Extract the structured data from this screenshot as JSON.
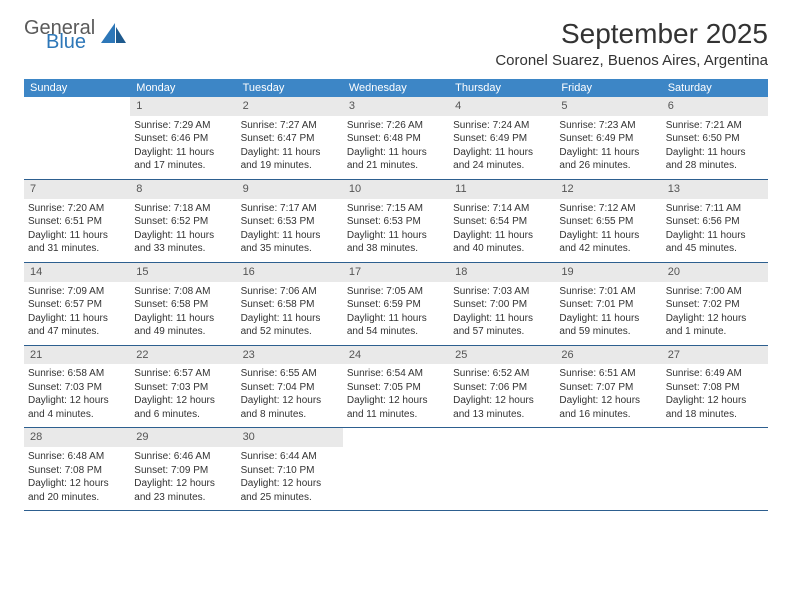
{
  "logo": {
    "text_dark": "General",
    "text_blue": "Blue"
  },
  "title": "September 2025",
  "location": "Coronel Suarez, Buenos Aires, Argentina",
  "header_bg": "#3d86c6",
  "daynum_bg": "#e9e9e9",
  "week_border": "#2d5f8f",
  "dow": [
    "Sunday",
    "Monday",
    "Tuesday",
    "Wednesday",
    "Thursday",
    "Friday",
    "Saturday"
  ],
  "weeks": [
    [
      {
        "n": "",
        "sr": "",
        "ss": "",
        "dl1": "",
        "dl2": ""
      },
      {
        "n": "1",
        "sr": "Sunrise: 7:29 AM",
        "ss": "Sunset: 6:46 PM",
        "dl1": "Daylight: 11 hours",
        "dl2": "and 17 minutes."
      },
      {
        "n": "2",
        "sr": "Sunrise: 7:27 AM",
        "ss": "Sunset: 6:47 PM",
        "dl1": "Daylight: 11 hours",
        "dl2": "and 19 minutes."
      },
      {
        "n": "3",
        "sr": "Sunrise: 7:26 AM",
        "ss": "Sunset: 6:48 PM",
        "dl1": "Daylight: 11 hours",
        "dl2": "and 21 minutes."
      },
      {
        "n": "4",
        "sr": "Sunrise: 7:24 AM",
        "ss": "Sunset: 6:49 PM",
        "dl1": "Daylight: 11 hours",
        "dl2": "and 24 minutes."
      },
      {
        "n": "5",
        "sr": "Sunrise: 7:23 AM",
        "ss": "Sunset: 6:49 PM",
        "dl1": "Daylight: 11 hours",
        "dl2": "and 26 minutes."
      },
      {
        "n": "6",
        "sr": "Sunrise: 7:21 AM",
        "ss": "Sunset: 6:50 PM",
        "dl1": "Daylight: 11 hours",
        "dl2": "and 28 minutes."
      }
    ],
    [
      {
        "n": "7",
        "sr": "Sunrise: 7:20 AM",
        "ss": "Sunset: 6:51 PM",
        "dl1": "Daylight: 11 hours",
        "dl2": "and 31 minutes."
      },
      {
        "n": "8",
        "sr": "Sunrise: 7:18 AM",
        "ss": "Sunset: 6:52 PM",
        "dl1": "Daylight: 11 hours",
        "dl2": "and 33 minutes."
      },
      {
        "n": "9",
        "sr": "Sunrise: 7:17 AM",
        "ss": "Sunset: 6:53 PM",
        "dl1": "Daylight: 11 hours",
        "dl2": "and 35 minutes."
      },
      {
        "n": "10",
        "sr": "Sunrise: 7:15 AM",
        "ss": "Sunset: 6:53 PM",
        "dl1": "Daylight: 11 hours",
        "dl2": "and 38 minutes."
      },
      {
        "n": "11",
        "sr": "Sunrise: 7:14 AM",
        "ss": "Sunset: 6:54 PM",
        "dl1": "Daylight: 11 hours",
        "dl2": "and 40 minutes."
      },
      {
        "n": "12",
        "sr": "Sunrise: 7:12 AM",
        "ss": "Sunset: 6:55 PM",
        "dl1": "Daylight: 11 hours",
        "dl2": "and 42 minutes."
      },
      {
        "n": "13",
        "sr": "Sunrise: 7:11 AM",
        "ss": "Sunset: 6:56 PM",
        "dl1": "Daylight: 11 hours",
        "dl2": "and 45 minutes."
      }
    ],
    [
      {
        "n": "14",
        "sr": "Sunrise: 7:09 AM",
        "ss": "Sunset: 6:57 PM",
        "dl1": "Daylight: 11 hours",
        "dl2": "and 47 minutes."
      },
      {
        "n": "15",
        "sr": "Sunrise: 7:08 AM",
        "ss": "Sunset: 6:58 PM",
        "dl1": "Daylight: 11 hours",
        "dl2": "and 49 minutes."
      },
      {
        "n": "16",
        "sr": "Sunrise: 7:06 AM",
        "ss": "Sunset: 6:58 PM",
        "dl1": "Daylight: 11 hours",
        "dl2": "and 52 minutes."
      },
      {
        "n": "17",
        "sr": "Sunrise: 7:05 AM",
        "ss": "Sunset: 6:59 PM",
        "dl1": "Daylight: 11 hours",
        "dl2": "and 54 minutes."
      },
      {
        "n": "18",
        "sr": "Sunrise: 7:03 AM",
        "ss": "Sunset: 7:00 PM",
        "dl1": "Daylight: 11 hours",
        "dl2": "and 57 minutes."
      },
      {
        "n": "19",
        "sr": "Sunrise: 7:01 AM",
        "ss": "Sunset: 7:01 PM",
        "dl1": "Daylight: 11 hours",
        "dl2": "and 59 minutes."
      },
      {
        "n": "20",
        "sr": "Sunrise: 7:00 AM",
        "ss": "Sunset: 7:02 PM",
        "dl1": "Daylight: 12 hours",
        "dl2": "and 1 minute."
      }
    ],
    [
      {
        "n": "21",
        "sr": "Sunrise: 6:58 AM",
        "ss": "Sunset: 7:03 PM",
        "dl1": "Daylight: 12 hours",
        "dl2": "and 4 minutes."
      },
      {
        "n": "22",
        "sr": "Sunrise: 6:57 AM",
        "ss": "Sunset: 7:03 PM",
        "dl1": "Daylight: 12 hours",
        "dl2": "and 6 minutes."
      },
      {
        "n": "23",
        "sr": "Sunrise: 6:55 AM",
        "ss": "Sunset: 7:04 PM",
        "dl1": "Daylight: 12 hours",
        "dl2": "and 8 minutes."
      },
      {
        "n": "24",
        "sr": "Sunrise: 6:54 AM",
        "ss": "Sunset: 7:05 PM",
        "dl1": "Daylight: 12 hours",
        "dl2": "and 11 minutes."
      },
      {
        "n": "25",
        "sr": "Sunrise: 6:52 AM",
        "ss": "Sunset: 7:06 PM",
        "dl1": "Daylight: 12 hours",
        "dl2": "and 13 minutes."
      },
      {
        "n": "26",
        "sr": "Sunrise: 6:51 AM",
        "ss": "Sunset: 7:07 PM",
        "dl1": "Daylight: 12 hours",
        "dl2": "and 16 minutes."
      },
      {
        "n": "27",
        "sr": "Sunrise: 6:49 AM",
        "ss": "Sunset: 7:08 PM",
        "dl1": "Daylight: 12 hours",
        "dl2": "and 18 minutes."
      }
    ],
    [
      {
        "n": "28",
        "sr": "Sunrise: 6:48 AM",
        "ss": "Sunset: 7:08 PM",
        "dl1": "Daylight: 12 hours",
        "dl2": "and 20 minutes."
      },
      {
        "n": "29",
        "sr": "Sunrise: 6:46 AM",
        "ss": "Sunset: 7:09 PM",
        "dl1": "Daylight: 12 hours",
        "dl2": "and 23 minutes."
      },
      {
        "n": "30",
        "sr": "Sunrise: 6:44 AM",
        "ss": "Sunset: 7:10 PM",
        "dl1": "Daylight: 12 hours",
        "dl2": "and 25 minutes."
      },
      {
        "n": "",
        "sr": "",
        "ss": "",
        "dl1": "",
        "dl2": ""
      },
      {
        "n": "",
        "sr": "",
        "ss": "",
        "dl1": "",
        "dl2": ""
      },
      {
        "n": "",
        "sr": "",
        "ss": "",
        "dl1": "",
        "dl2": ""
      },
      {
        "n": "",
        "sr": "",
        "ss": "",
        "dl1": "",
        "dl2": ""
      }
    ]
  ]
}
